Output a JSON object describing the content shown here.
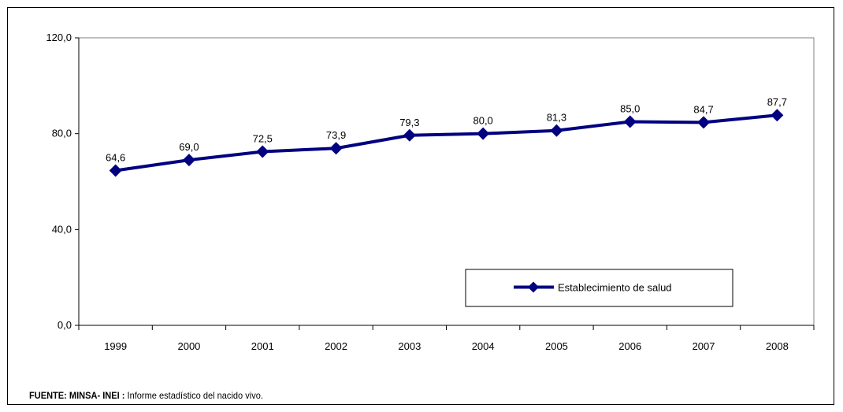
{
  "chart_data": {
    "type": "line",
    "title": "",
    "xlabel": "",
    "ylabel": "",
    "categories": [
      "1999",
      "2000",
      "2001",
      "2002",
      "2003",
      "2004",
      "2005",
      "2006",
      "2007",
      "2008"
    ],
    "series": [
      {
        "name": "Establecimiento de salud",
        "values": [
          64.6,
          69.0,
          72.5,
          73.9,
          79.3,
          80.0,
          81.3,
          85.0,
          84.7,
          87.7
        ],
        "labels": [
          "64,6",
          "69,0",
          "72,5",
          "73,9",
          "79,3",
          "80,0",
          "81,3",
          "85,0",
          "84,7",
          "87,7"
        ],
        "color": "#000080"
      }
    ],
    "ylim": [
      0,
      120
    ],
    "yticks": [
      0,
      40,
      80,
      120
    ],
    "ytick_labels": [
      "0,0",
      "40,0",
      "80,0",
      "120,0"
    ],
    "grid": false,
    "legend_position": "inside-lower-right"
  },
  "source": {
    "bold_part": "FUENTE: MINSA- INEI :",
    "text_part": " Informe estadístico del nacido vivo."
  }
}
